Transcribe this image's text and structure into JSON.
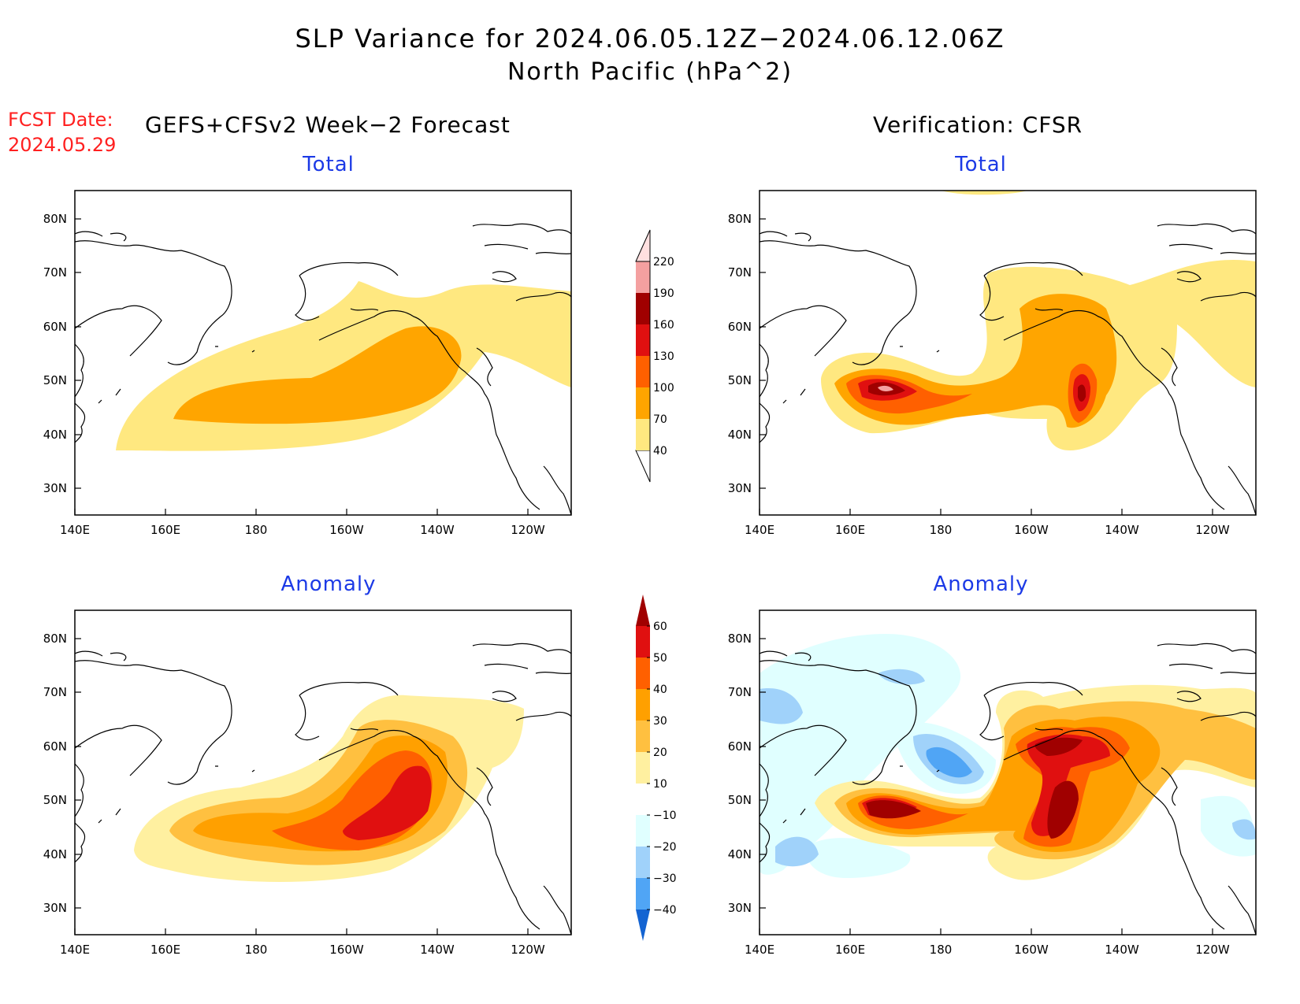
{
  "title": {
    "line1": "SLP Variance for 2024.06.05.12Z−2024.06.12.06Z",
    "line2": "North Pacific (hPa^2)"
  },
  "forecast": {
    "date_label": "FCST Date:",
    "date_value": "2024.05.29",
    "heading": "GEFS+CFSv2 Week−2 Forecast"
  },
  "verification": {
    "heading": "Verification: CFSR"
  },
  "panel_titles": {
    "forecast_total": "Total",
    "verification_total": "Total",
    "forecast_anomaly": "Anomaly",
    "verification_anomaly": "Anomaly"
  },
  "axes": {
    "lon_ticks": [
      "140E",
      "160E",
      "180",
      "160W",
      "140W",
      "120W"
    ],
    "lat_ticks": [
      "80N",
      "70N",
      "60N",
      "50N",
      "40N",
      "30N"
    ]
  },
  "colors": {
    "total_scale": [
      "#ffe880",
      "#ffa500",
      "#ff6000",
      "#e01010",
      "#a00000",
      "#f4a0a0",
      "#ffe0e0"
    ],
    "anomaly_positive": [
      "#fff0a0",
      "#ffc040",
      "#ffa000",
      "#ff6000",
      "#e01010",
      "#a00000"
    ],
    "anomaly_negative": [
      "#e0ffff",
      "#a0d2fa",
      "#50a5f5",
      "#1464d2"
    ],
    "title_blue": "#1c3ae6",
    "fcst_red": "#ff2020"
  },
  "chart_data": [
    {
      "type": "colorbar",
      "name_in_figure": "total",
      "levels": [
        "40",
        "70",
        "100",
        "130",
        "160",
        "190",
        "220"
      ]
    },
    {
      "type": "colorbar",
      "name_in_figure": "anomaly",
      "levels": [
        "−40",
        "−30",
        "−20",
        "−10",
        "10",
        "20",
        "30",
        "40",
        "50",
        "60"
      ]
    }
  ]
}
